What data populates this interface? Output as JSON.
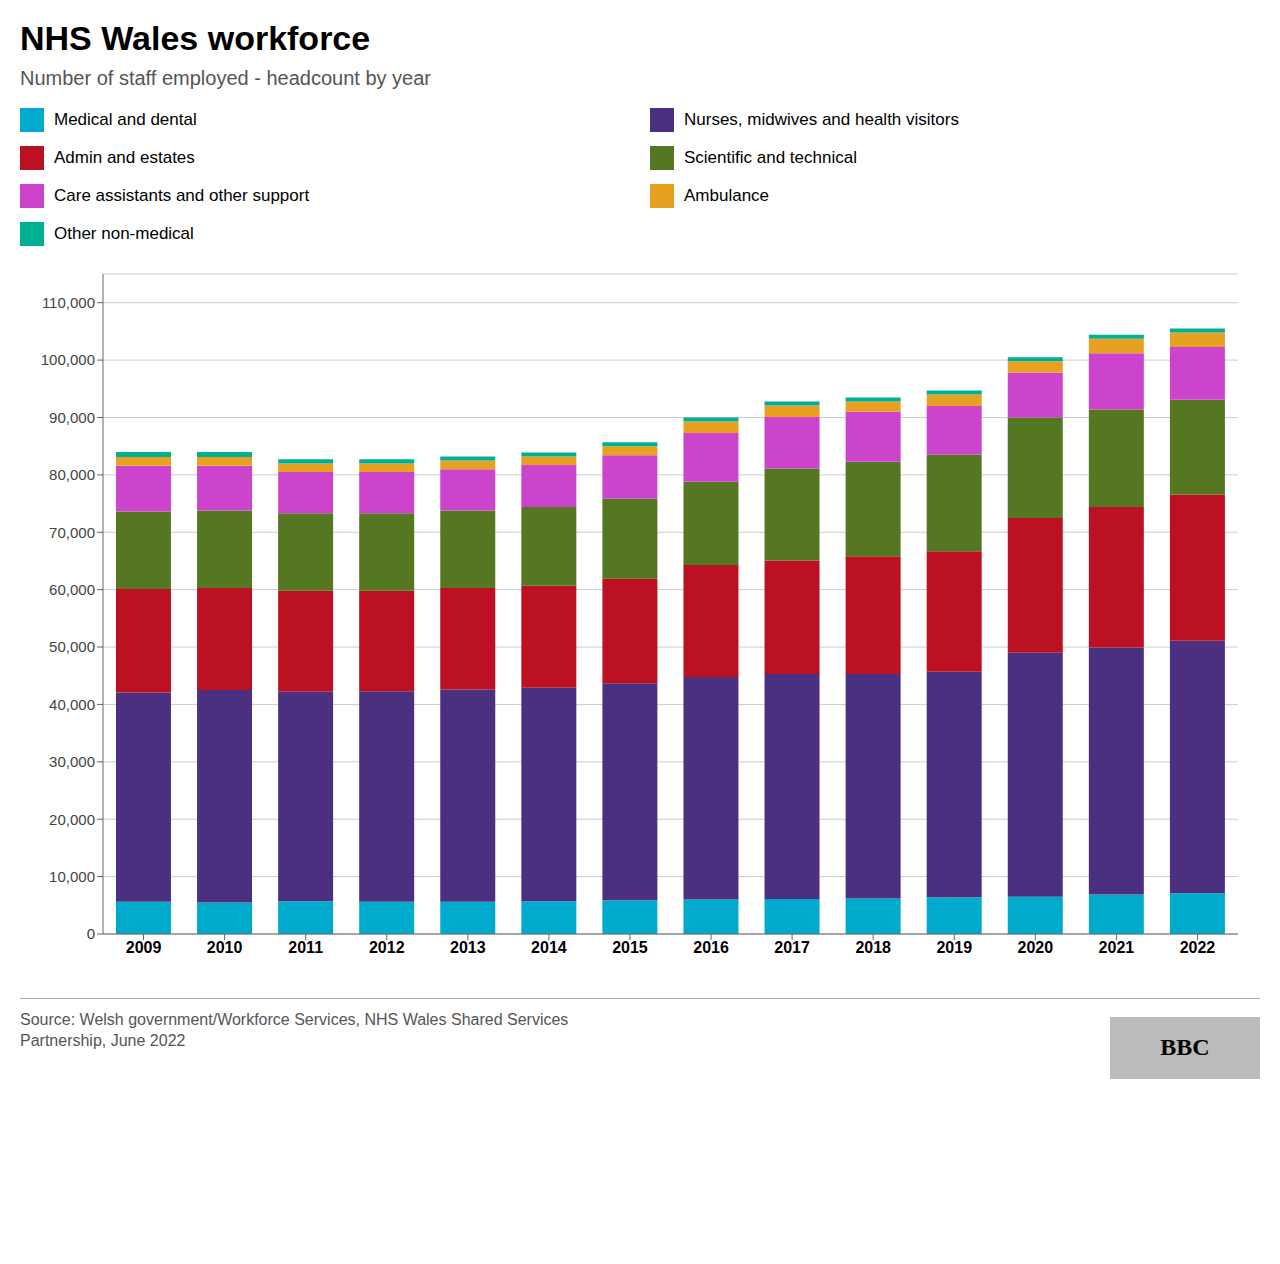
{
  "chart_data": {
    "type": "bar",
    "title": "NHS Wales workforce",
    "subtitle": "Number of staff employed - headcount by year",
    "source": "Source: Welsh government/Workforce Services, NHS Wales Shared Services\nPartnership, June 2022",
    "annotations": [
      "BBC"
    ],
    "stacked": true,
    "grid": true,
    "legend": "top",
    "categories": [
      "2009",
      "2010",
      "2011",
      "2012",
      "2013",
      "2014",
      "2015",
      "2016",
      "2017",
      "2018",
      "2019",
      "2020",
      "2021",
      "2022"
    ],
    "series": [
      {
        "name": "Medical and dental",
        "color": "#00AACC",
        "values": [
          5600,
          5500,
          5700,
          5600,
          5600,
          5700,
          5900,
          6000,
          6100,
          6200,
          6400,
          6500,
          6900,
          7100
        ]
      },
      {
        "name": "Nurses, midwives and health visitors",
        "color": "#4B3080",
        "values": [
          36500,
          37000,
          36500,
          36700,
          37000,
          37200,
          37800,
          38800,
          39200,
          39100,
          39300,
          42500,
          43000,
          44000
        ]
      },
      {
        "name": "Admin and estates",
        "color": "#BB1122",
        "values": [
          18000,
          17800,
          17600,
          17500,
          17700,
          17800,
          18200,
          19500,
          19800,
          20500,
          21000,
          23500,
          24500,
          25500
        ]
      },
      {
        "name": "Scientific and technical",
        "color": "#557722",
        "values": [
          13500,
          13500,
          13500,
          13500,
          13500,
          13700,
          14000,
          14500,
          16000,
          16500,
          16800,
          17500,
          17000,
          16500
        ]
      },
      {
        "name": "Care assistants and other support",
        "color": "#CC44CC",
        "values": [
          8000,
          7800,
          7200,
          7200,
          7200,
          7300,
          7500,
          8500,
          9000,
          8700,
          8500,
          7800,
          9800,
          9200
        ]
      },
      {
        "name": "Ambulance",
        "color": "#E8A020",
        "values": [
          1500,
          1500,
          1500,
          1500,
          1500,
          1500,
          1600,
          2000,
          2000,
          1800,
          2000,
          2000,
          2500,
          2500
        ]
      },
      {
        "name": "Other non-medical",
        "color": "#00B094",
        "values": [
          900,
          900,
          700,
          700,
          700,
          700,
          700,
          700,
          700,
          700,
          700,
          700,
          700,
          700
        ]
      }
    ],
    "ylim": [
      0,
      115000
    ],
    "yticks": [
      0,
      {
        "value": 10000,
        "label": "10,000"
      },
      {
        "value": 20000,
        "label": "20,000"
      },
      {
        "value": 30000,
        "label": "30,000"
      },
      {
        "value": 40000,
        "label": "40,000"
      },
      {
        "value": 50000,
        "label": "50,000"
      },
      {
        "value": 60000,
        "label": "60,000"
      },
      {
        "value": 70000,
        "label": "70,000"
      },
      {
        "value": 80000,
        "label": "80,000"
      },
      {
        "value": 90000,
        "label": "90,000"
      },
      {
        "value": 100000,
        "label": "100,000"
      },
      {
        "value": 110000,
        "label": "110,000"
      }
    ]
  }
}
